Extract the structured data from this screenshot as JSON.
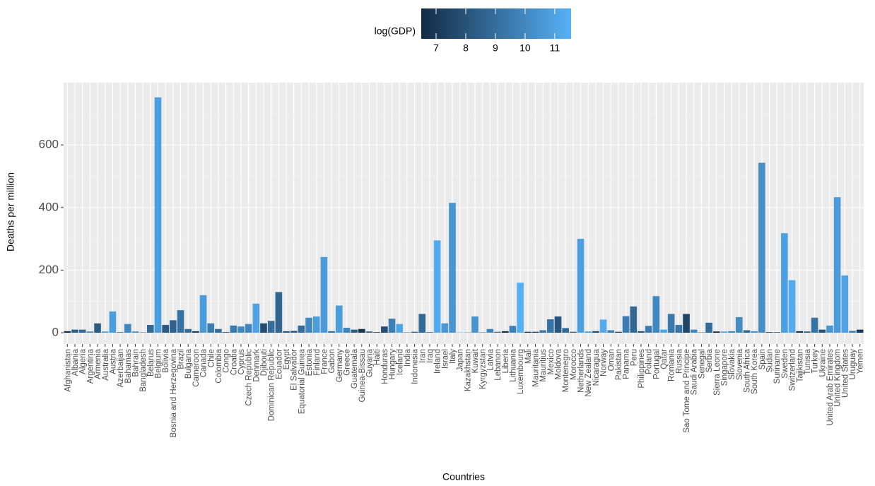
{
  "chart_data": {
    "type": "bar",
    "x_label": "Countries",
    "y_label": "Deaths per million",
    "categories": [
      "Afghanistan",
      "Albania",
      "Algeria",
      "Argentina",
      "Armenia",
      "Australia",
      "Austria",
      "Azerbaijan",
      "Bahamas",
      "Bahrain",
      "Bangladesh",
      "Belarus",
      "Belgium",
      "Bolivia",
      "Bosnia and Herzegovina",
      "Brazil",
      "Bulgaria",
      "Cameroon",
      "Canada",
      "Chile",
      "Colombia",
      "Congo",
      "Croatia",
      "Cyprus",
      "Czech Republic",
      "Denmark",
      "Djibouti",
      "Dominican Republic",
      "Ecuador",
      "Egypt",
      "El Salvador",
      "Equatorial Guinea",
      "Estonia",
      "Finland",
      "France",
      "Gabon",
      "Germany",
      "Greece",
      "Guatemala",
      "Guinea-Bissau",
      "Guyana",
      "Haiti",
      "Honduras",
      "Hungary",
      "Iceland",
      "India",
      "Indonesia",
      "Iran",
      "Iraq",
      "Ireland",
      "Israel",
      "Italy",
      "Japan",
      "Kazakhstan",
      "Kuwait",
      "Kyrgyzstan",
      "Latvia",
      "Lebanon",
      "Liberia",
      "Lithuania",
      "Luxembourg",
      "Mali",
      "Mauritania",
      "Mauritius",
      "Mexico",
      "Moldova",
      "Montenegro",
      "Morocco",
      "Netherlands",
      "New Zealand",
      "Nicaragua",
      "Norway",
      "Oman",
      "Pakistan",
      "Panama",
      "Peru",
      "Philippines",
      "Poland",
      "Portugal",
      "Qatar",
      "Romania",
      "Russia",
      "Sao Tome and Principe",
      "Saudi Arabia",
      "Senegal",
      "Serbia",
      "Sierra Leone",
      "Singapore",
      "Slovakia",
      "Slovenia",
      "South Africa",
      "South Korea",
      "Spain",
      "Sudan",
      "Suriname",
      "Sweden",
      "Switzerland",
      "Tajikistan",
      "Tunisia",
      "Turkey",
      "Ukraine",
      "United Arab Emirates",
      "United Kingdom",
      "United States",
      "Uruguay",
      "Yemen"
    ],
    "values": [
      5,
      10,
      10,
      4,
      30,
      4,
      68,
      2,
      28,
      4,
      1,
      25,
      752,
      25,
      40,
      72,
      12,
      5,
      120,
      30,
      12,
      2,
      23,
      20,
      28,
      93,
      30,
      38,
      130,
      5,
      6,
      23,
      48,
      52,
      242,
      5,
      87,
      16,
      10,
      12,
      4,
      2,
      20,
      45,
      28,
      1,
      3,
      60,
      2,
      295,
      30,
      415,
      1,
      1,
      52,
      1,
      12,
      3,
      5,
      22,
      160,
      3,
      3,
      8,
      43,
      52,
      15,
      3,
      300,
      4,
      5,
      42,
      8,
      3,
      53,
      84,
      5,
      22,
      117,
      10,
      60,
      25,
      60,
      10,
      1,
      32,
      4,
      4,
      5,
      50,
      8,
      5,
      543,
      2,
      2,
      318,
      168,
      5,
      4,
      48,
      10,
      23,
      433,
      183,
      6,
      10
    ],
    "color_values": [
      6.6,
      8.5,
      9,
      9.9,
      8.4,
      10.9,
      10.8,
      9,
      10,
      10.2,
      7.5,
      8.8,
      10.8,
      8.2,
      8.6,
      9.2,
      9,
      7.3,
      10.7,
      9.6,
      9,
      7.5,
      9.5,
      10,
      10,
      11,
      7.7,
      9,
      8.7,
      8.2,
      8.3,
      9,
      10,
      10.8,
      10.7,
      9,
      10.8,
      9.9,
      8.4,
      6.9,
      8.5,
      7,
      7.8,
      9.7,
      11.1,
      7.5,
      8.3,
      8.8,
      8.7,
      11.3,
      10.6,
      10.5,
      10.6,
      9.2,
      10.5,
      7,
      9.8,
      9,
      6.5,
      9.8,
      11.5,
      6.8,
      7.2,
      9.3,
      9.2,
      8.1,
      8.9,
      8.1,
      10.9,
      10.6,
      7.6,
      11.3,
      9.7,
      7.2,
      9.6,
      8.8,
      8,
      9.6,
      10,
      11.1,
      9.4,
      9.3,
      7.5,
      10,
      7.3,
      8.9,
      6.3,
      11,
      9.8,
      10.1,
      8.8,
      10.4,
      10.3,
      7,
      8.7,
      10.9,
      11.3,
      6.7,
      8.2,
      9.2,
      8,
      10.6,
      10.7,
      11,
      9.7,
      7
    ],
    "ylim": [
      -36,
      799
    ],
    "yticks": [
      0,
      200,
      400,
      600
    ],
    "grid": true,
    "color_scale": {
      "name": "log(GDP)",
      "low": "#132B43",
      "high": "#56B1F7",
      "lim": [
        6.5,
        11.55
      ],
      "ticks": [
        7,
        8,
        9,
        10,
        11
      ]
    }
  }
}
